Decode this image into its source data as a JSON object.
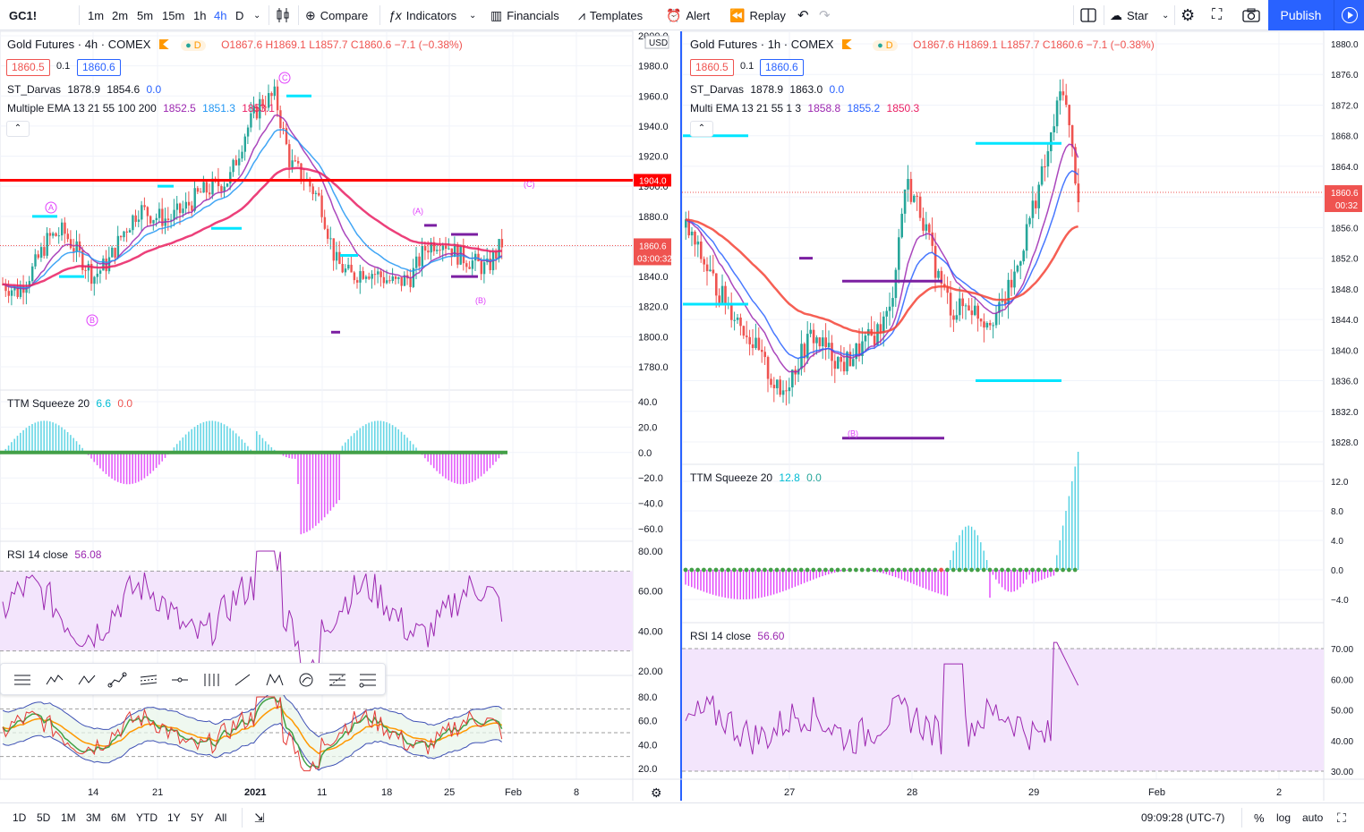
{
  "toolbar": {
    "symbol": "GC1!",
    "intervals": [
      "1m",
      "2m",
      "5m",
      "15m",
      "1h",
      "4h",
      "D"
    ],
    "active_interval": "4h",
    "compare": "Compare",
    "indicators": "Indicators",
    "financials": "Financials",
    "templates": "Templates",
    "alert": "Alert",
    "replay": "Replay",
    "star_label": "Star",
    "publish": "Publish"
  },
  "left_chart": {
    "title": "Gold Futures · 4h · COMEX",
    "ohlc": {
      "o": "O1867.6",
      "h": "H1869.1",
      "l": "L1857.7",
      "c": "C1860.6",
      "chg": "−7.1 (−0.38%)"
    },
    "bid": "1860.5",
    "spread": "0.1",
    "ask": "1860.6",
    "darvas": {
      "name": "ST_Darvas",
      "v1": "1878.9",
      "v2": "1854.6",
      "v3": "0.0"
    },
    "ema": {
      "name": "Multiple EMA 13 21 55 100 200",
      "v1": "1852.5",
      "v2": "1851.3",
      "v3": "1853.1"
    },
    "squeeze": {
      "name": "TTM Squeeze 20",
      "v1": "6.6",
      "v2": "0.0"
    },
    "rsi": {
      "name": "RSI 14 close",
      "v1": "56.08"
    },
    "currency": "USD",
    "price_ticks": [
      "2000.0",
      "1980.0",
      "1960.0",
      "1940.0",
      "1920.0",
      "1900.0",
      "1880.0",
      "1860.0",
      "1840.0",
      "1820.0",
      "1800.0",
      "1780.0"
    ],
    "sq_ticks": [
      "40.0",
      "20.0",
      "0.0",
      "−20.0",
      "−40.0",
      "−60.0"
    ],
    "rsi_ticks": [
      "80.00",
      "60.00",
      "40.00",
      "20.00"
    ],
    "rsi2_ticks": [
      "80.0",
      "60.0",
      "40.0",
      "20.0"
    ],
    "x_ticks": [
      "14",
      "21",
      "2021",
      "11",
      "18",
      "25",
      "Feb",
      "8"
    ],
    "red_line_label": "1904.0",
    "last_price": "1860.6",
    "countdown": "03:00:32",
    "wave_labels": [
      "A",
      "B",
      "C",
      "(A)",
      "(B)",
      "(C)"
    ]
  },
  "right_chart": {
    "title": "Gold Futures · 1h · COMEX",
    "ohlc": {
      "o": "O1867.6",
      "h": "H1869.1",
      "l": "L1857.7",
      "c": "C1860.6",
      "chg": "−7.1 (−0.38%)"
    },
    "bid": "1860.5",
    "spread": "0.1",
    "ask": "1860.6",
    "darvas": {
      "name": "ST_Darvas",
      "v1": "1878.9",
      "v2": "1863.0",
      "v3": "0.0"
    },
    "ema": {
      "name": "Multi EMA 13 21 55 1 3",
      "v1": "1858.8",
      "v2": "1855.2",
      "v3": "1850.3"
    },
    "squeeze": {
      "name": "TTM Squeeze 20",
      "v1": "12.8",
      "v2": "0.0"
    },
    "rsi": {
      "name": "RSI 14 close",
      "v1": "56.60"
    },
    "price_ticks": [
      "1880.0",
      "1876.0",
      "1872.0",
      "1868.0",
      "1864.0",
      "1860.0",
      "1856.0",
      "1852.0",
      "1848.0",
      "1844.0",
      "1840.0",
      "1836.0",
      "1832.0",
      "1828.0"
    ],
    "sq_ticks": [
      "12.0",
      "8.0",
      "4.0",
      "0.0",
      "−4.0"
    ],
    "rsi_ticks": [
      "70.00",
      "60.00",
      "50.00",
      "40.00",
      "30.00"
    ],
    "x_ticks": [
      "27",
      "28",
      "29",
      "Feb",
      "2"
    ],
    "last_price": "1860.6",
    "countdown": "00:32",
    "wave_label": "(B)"
  },
  "bottom": {
    "ranges": [
      "1D",
      "5D",
      "1M",
      "3M",
      "6M",
      "YTD",
      "1Y",
      "5Y",
      "All"
    ],
    "time": "09:09:28 (UTC-7)",
    "percent": "%",
    "log": "log",
    "auto": "auto"
  },
  "colors": {
    "up": "#26a69a",
    "down": "#ef5350",
    "accent": "#2962ff",
    "red_line": "#ff0000",
    "cyan": "#00e5ff",
    "purple": "#7b1fa2",
    "rsi_fill": "#f3e5fc"
  }
}
